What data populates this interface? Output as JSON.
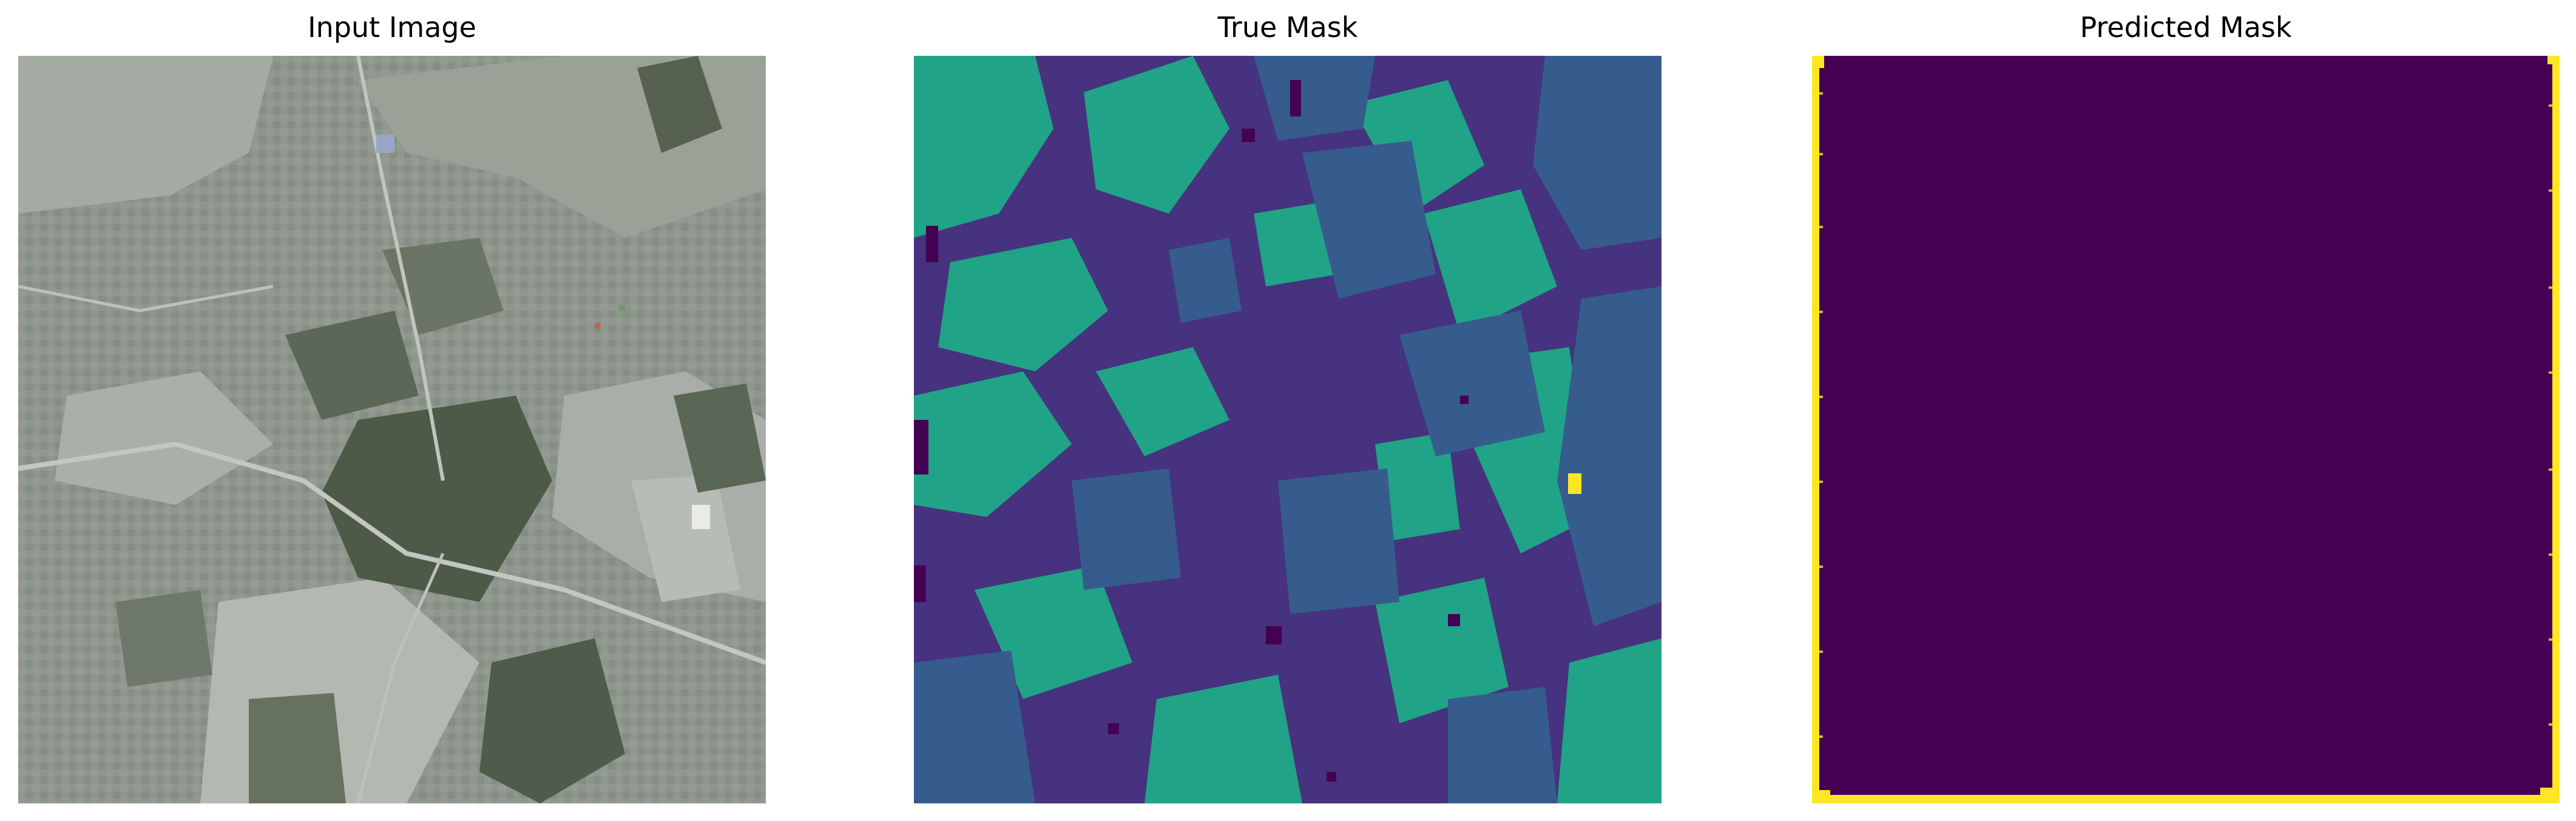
{
  "figure": {
    "panels": [
      {
        "title": "Input Image",
        "kind": "aerial-photo"
      },
      {
        "title": "True Mask",
        "kind": "segmentation-mask"
      },
      {
        "title": "Predicted Mask",
        "kind": "segmentation-mask"
      }
    ]
  },
  "colors": {
    "class_0": "#440154",
    "class_1": "#46327e",
    "class_2": "#365c8d",
    "class_3": "#20a386",
    "class_4": "#fde725",
    "photo_base": "#8a948a",
    "photo_dark": "#4e5a4a",
    "photo_light": "#b9bfb8"
  }
}
